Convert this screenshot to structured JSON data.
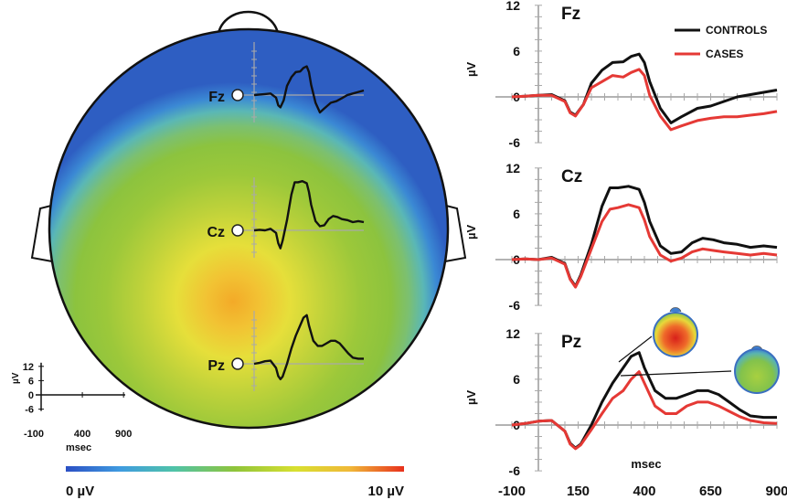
{
  "chart_data": [
    {
      "type": "heatmap",
      "description_kind": "scalp-topography",
      "electrodes": [
        {
          "name": "Fz"
        },
        {
          "name": "Cz"
        },
        {
          "name": "Pz"
        }
      ],
      "colorbar": {
        "min_label": "0 µV",
        "max_label": "10 µV",
        "colors": [
          "#2b4fc4",
          "#3f9be0",
          "#4fc3a8",
          "#8fc43a",
          "#d8e030",
          "#f0b838",
          "#e8301c"
        ]
      },
      "scale_inset": {
        "y_ticks": [
          "12",
          "6",
          "0",
          "-6"
        ],
        "ylabel": "µV",
        "x_ticks": [
          "-100",
          "400",
          "900"
        ],
        "xlabel": "msec"
      }
    },
    {
      "type": "line",
      "panels": [
        {
          "label": "Fz",
          "ylim": [
            -6,
            12
          ],
          "series": [
            {
              "name": "CONTROLS",
              "color": "#111111",
              "x": [
                -100,
                -50,
                0,
                50,
                100,
                120,
                140,
                170,
                200,
                240,
                280,
                320,
                350,
                380,
                400,
                420,
                460,
                500,
                540,
                600,
                650,
                700,
                750,
                800,
                850,
                900
              ],
              "y": [
                0,
                0.1,
                0.2,
                0.3,
                -0.5,
                -2,
                -2.4,
                -1,
                1.8,
                3.5,
                4.5,
                4.6,
                5.3,
                5.6,
                4.5,
                2,
                -1.5,
                -3.4,
                -2.6,
                -1.5,
                -1.2,
                -0.6,
                0,
                0.3,
                0.6,
                0.9
              ]
            },
            {
              "name": "CASES",
              "color": "#e53935",
              "x": [
                -100,
                -50,
                0,
                50,
                100,
                120,
                140,
                170,
                200,
                240,
                280,
                320,
                350,
                380,
                400,
                420,
                460,
                500,
                540,
                600,
                650,
                700,
                750,
                800,
                850,
                900
              ],
              "y": [
                0,
                0.1,
                0.2,
                0.2,
                -0.6,
                -2.1,
                -2.5,
                -1,
                1.2,
                2,
                2.8,
                2.6,
                3.2,
                3.6,
                2.8,
                0.2,
                -2.5,
                -4.3,
                -3.8,
                -3.1,
                -2.8,
                -2.6,
                -2.6,
                -2.4,
                -2.2,
                -1.9
              ]
            }
          ]
        },
        {
          "label": "Cz",
          "ylim": [
            -6,
            12
          ],
          "series": [
            {
              "name": "CONTROLS",
              "color": "#111111",
              "x": [
                -100,
                -50,
                0,
                50,
                100,
                120,
                140,
                160,
                200,
                240,
                270,
                300,
                340,
                380,
                400,
                420,
                460,
                500,
                540,
                580,
                620,
                660,
                700,
                750,
                800,
                850,
                900
              ],
              "y": [
                0,
                0.1,
                0,
                0.3,
                -0.5,
                -2.5,
                -3.5,
                -2,
                2,
                7,
                9.4,
                9.4,
                9.6,
                9.2,
                7.5,
                5,
                1.8,
                0.8,
                1,
                2.2,
                2.8,
                2.6,
                2.2,
                2,
                1.6,
                1.8,
                1.6
              ]
            },
            {
              "name": "CASES",
              "color": "#e53935",
              "x": [
                -100,
                -50,
                0,
                50,
                100,
                120,
                140,
                160,
                200,
                240,
                270,
                300,
                340,
                380,
                400,
                420,
                460,
                500,
                540,
                580,
                620,
                660,
                700,
                750,
                800,
                850,
                900
              ],
              "y": [
                0,
                0.1,
                0,
                0.2,
                -0.6,
                -2.6,
                -3.6,
                -2.2,
                1.4,
                5,
                6.6,
                6.8,
                7.2,
                6.8,
                5.2,
                3,
                0.6,
                -0.2,
                0.2,
                1,
                1.4,
                1.2,
                1,
                0.8,
                0.6,
                0.8,
                0.6
              ]
            }
          ]
        },
        {
          "label": "Pz",
          "ylim": [
            -6,
            12
          ],
          "series": [
            {
              "name": "CONTROLS",
              "color": "#111111",
              "x": [
                -100,
                -50,
                0,
                50,
                100,
                120,
                140,
                160,
                200,
                240,
                280,
                320,
                350,
                380,
                400,
                440,
                480,
                520,
                560,
                600,
                640,
                680,
                720,
                760,
                800,
                850,
                900
              ],
              "y": [
                0,
                0.2,
                0.5,
                0.6,
                -0.8,
                -2.4,
                -3,
                -2.5,
                0,
                3,
                5.5,
                7.5,
                9,
                9.5,
                7.5,
                4.5,
                3.5,
                3.5,
                4,
                4.5,
                4.5,
                4,
                3,
                2,
                1.2,
                1,
                1
              ]
            },
            {
              "name": "CASES",
              "color": "#e53935",
              "x": [
                -100,
                -50,
                0,
                50,
                100,
                120,
                140,
                160,
                200,
                240,
                280,
                320,
                350,
                380,
                400,
                440,
                480,
                520,
                560,
                600,
                640,
                680,
                720,
                760,
                800,
                850,
                900
              ],
              "y": [
                0,
                0.2,
                0.5,
                0.6,
                -0.8,
                -2.5,
                -3.1,
                -2.6,
                -0.6,
                1.5,
                3.5,
                4.5,
                6,
                7,
                5.5,
                2.5,
                1.5,
                1.5,
                2.5,
                3,
                3,
                2.5,
                1.8,
                1.1,
                0.6,
                0.3,
                0.2
              ]
            }
          ]
        }
      ],
      "y_ticks": [
        "12",
        "6",
        "0",
        "-6"
      ],
      "ylabel": "µV",
      "x_ticks": [
        "-100",
        "150",
        "400",
        "650",
        "900"
      ],
      "xlabel": "msec",
      "legend": {
        "placement": "top-right",
        "entries": [
          "CONTROLS",
          "CASES"
        ]
      }
    }
  ]
}
